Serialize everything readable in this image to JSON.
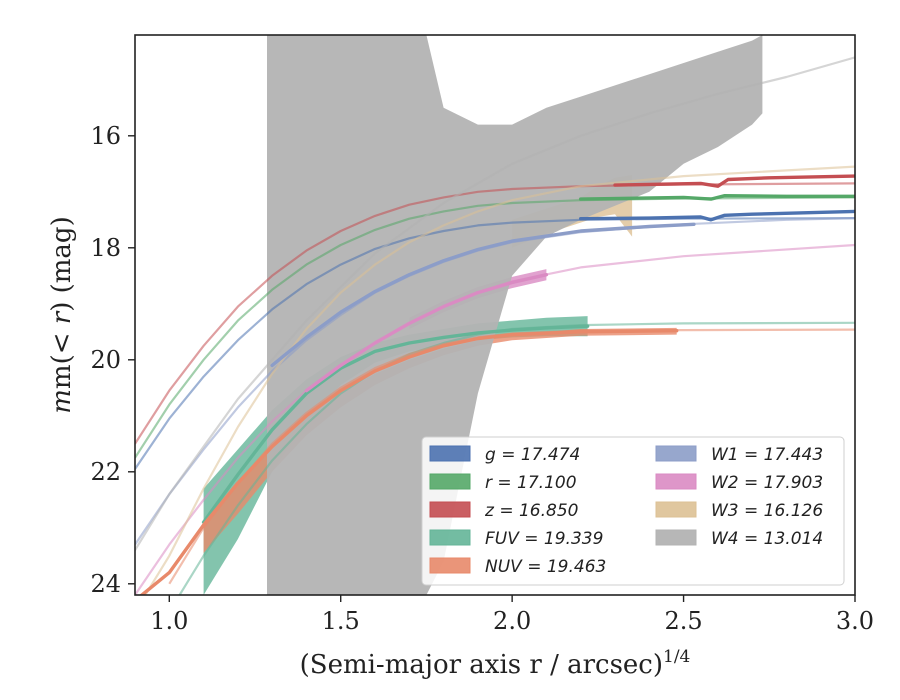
{
  "chart_data": {
    "type": "line",
    "xlabel": "(Semi-major axis r / arcsec)",
    "xlabel_exponent": "1/4",
    "ylabel_prefix": "m(",
    "ylabel_var": "< r",
    "ylabel_suffix": ") (mag)",
    "xlim": [
      0.9,
      3.0
    ],
    "ylim": [
      24.2,
      14.2
    ],
    "y_inverted": true,
    "x_ticks": [
      1.0,
      1.5,
      2.0,
      2.5,
      3.0
    ],
    "x_tick_labels": [
      "1.0",
      "1.5",
      "2.0",
      "2.5",
      "3.0"
    ],
    "y_ticks": [
      16,
      18,
      20,
      22,
      24
    ],
    "y_tick_labels": [
      "16",
      "18",
      "20",
      "22",
      "24"
    ],
    "grid": false,
    "legend_position": "lower-right",
    "series": [
      {
        "key": "g",
        "label": "g = 17.474",
        "color": "#4c72b0",
        "fit": [
          [
            0.9,
            21.95
          ],
          [
            1.0,
            21.05
          ],
          [
            1.1,
            20.3
          ],
          [
            1.2,
            19.65
          ],
          [
            1.3,
            19.1
          ],
          [
            1.4,
            18.65
          ],
          [
            1.5,
            18.3
          ],
          [
            1.6,
            18.02
          ],
          [
            1.7,
            17.83
          ],
          [
            1.8,
            17.7
          ],
          [
            1.9,
            17.6
          ],
          [
            2.0,
            17.55
          ],
          [
            2.2,
            17.5
          ],
          [
            2.5,
            17.48
          ],
          [
            3.0,
            17.47
          ]
        ],
        "data": [
          [
            2.2,
            17.48
          ],
          [
            2.4,
            17.47
          ],
          [
            2.55,
            17.45
          ],
          [
            2.58,
            17.5
          ],
          [
            2.62,
            17.42
          ],
          [
            2.7,
            17.4
          ],
          [
            3.0,
            17.35
          ]
        ],
        "band": null
      },
      {
        "key": "r",
        "label": "r = 17.100",
        "color": "#55a868",
        "fit": [
          [
            0.9,
            21.75
          ],
          [
            1.0,
            20.8
          ],
          [
            1.1,
            20.0
          ],
          [
            1.2,
            19.3
          ],
          [
            1.3,
            18.75
          ],
          [
            1.4,
            18.3
          ],
          [
            1.5,
            17.95
          ],
          [
            1.6,
            17.68
          ],
          [
            1.7,
            17.48
          ],
          [
            1.8,
            17.35
          ],
          [
            1.9,
            17.25
          ],
          [
            2.0,
            17.2
          ],
          [
            2.2,
            17.15
          ],
          [
            2.5,
            17.12
          ],
          [
            3.0,
            17.1
          ]
        ],
        "data": [
          [
            2.2,
            17.13
          ],
          [
            2.5,
            17.1
          ],
          [
            2.58,
            17.13
          ],
          [
            2.62,
            17.07
          ],
          [
            2.8,
            17.08
          ],
          [
            3.0,
            17.08
          ]
        ],
        "band": null
      },
      {
        "key": "z",
        "label": "z = 16.850",
        "color": "#c44e52",
        "fit": [
          [
            0.9,
            21.5
          ],
          [
            1.0,
            20.55
          ],
          [
            1.1,
            19.75
          ],
          [
            1.2,
            19.05
          ],
          [
            1.3,
            18.5
          ],
          [
            1.4,
            18.05
          ],
          [
            1.5,
            17.7
          ],
          [
            1.6,
            17.43
          ],
          [
            1.7,
            17.23
          ],
          [
            1.8,
            17.1
          ],
          [
            1.9,
            17.0
          ],
          [
            2.0,
            16.95
          ],
          [
            2.2,
            16.9
          ],
          [
            2.5,
            16.87
          ],
          [
            3.0,
            16.85
          ]
        ],
        "data": [
          [
            2.3,
            16.88
          ],
          [
            2.55,
            16.85
          ],
          [
            2.6,
            16.9
          ],
          [
            2.63,
            16.78
          ],
          [
            2.75,
            16.75
          ],
          [
            3.0,
            16.72
          ]
        ],
        "band": null
      },
      {
        "key": "FUV",
        "label": "FUV = 19.339",
        "color": "#64b598",
        "fit": [
          [
            1.0,
            24.5
          ],
          [
            1.1,
            23.5
          ],
          [
            1.2,
            22.6
          ],
          [
            1.3,
            21.8
          ],
          [
            1.4,
            21.15
          ],
          [
            1.5,
            20.6
          ],
          [
            1.6,
            20.2
          ],
          [
            1.7,
            19.9
          ],
          [
            1.8,
            19.7
          ],
          [
            1.9,
            19.55
          ],
          [
            2.0,
            19.45
          ],
          [
            2.2,
            19.38
          ],
          [
            2.5,
            19.35
          ],
          [
            3.0,
            19.34
          ]
        ],
        "data": [
          [
            1.1,
            22.9
          ],
          [
            1.2,
            22.05
          ],
          [
            1.3,
            21.25
          ],
          [
            1.4,
            20.6
          ],
          [
            1.5,
            20.15
          ],
          [
            1.6,
            19.85
          ],
          [
            1.7,
            19.7
          ],
          [
            1.8,
            19.6
          ],
          [
            1.9,
            19.52
          ],
          [
            2.0,
            19.47
          ],
          [
            2.1,
            19.43
          ],
          [
            2.22,
            19.4
          ]
        ],
        "band": [
          [
            1.1,
            22.3,
            24.2
          ],
          [
            1.2,
            21.6,
            23.2
          ],
          [
            1.3,
            20.9,
            22.0
          ],
          [
            1.4,
            20.35,
            21.1
          ],
          [
            1.5,
            19.95,
            20.45
          ],
          [
            1.6,
            19.7,
            20.05
          ],
          [
            1.7,
            19.55,
            19.85
          ],
          [
            1.8,
            19.45,
            19.75
          ],
          [
            1.9,
            19.35,
            19.65
          ],
          [
            2.0,
            19.3,
            19.6
          ],
          [
            2.1,
            19.25,
            19.58
          ],
          [
            2.22,
            19.22,
            19.58
          ]
        ]
      },
      {
        "key": "NUV",
        "label": "NUV = 19.463",
        "color": "#e8896a",
        "fit": [
          [
            1.0,
            24.0
          ],
          [
            1.1,
            23.0
          ],
          [
            1.2,
            22.2
          ],
          [
            1.3,
            21.5
          ],
          [
            1.4,
            20.95
          ],
          [
            1.5,
            20.5
          ],
          [
            1.6,
            20.15
          ],
          [
            1.7,
            19.9
          ],
          [
            1.8,
            19.72
          ],
          [
            1.9,
            19.6
          ],
          [
            2.0,
            19.53
          ],
          [
            2.2,
            19.48
          ],
          [
            2.5,
            19.47
          ],
          [
            3.0,
            19.46
          ]
        ],
        "data": [
          [
            0.9,
            24.3
          ],
          [
            1.0,
            23.8
          ],
          [
            1.1,
            22.95
          ],
          [
            1.2,
            22.2
          ],
          [
            1.3,
            21.55
          ],
          [
            1.4,
            21.0
          ],
          [
            1.5,
            20.55
          ],
          [
            1.6,
            20.2
          ],
          [
            1.7,
            19.95
          ],
          [
            1.8,
            19.75
          ],
          [
            1.9,
            19.62
          ],
          [
            2.0,
            19.55
          ],
          [
            2.2,
            19.5
          ],
          [
            2.48,
            19.48
          ]
        ],
        "band": [
          [
            1.1,
            22.9,
            23.45
          ],
          [
            1.2,
            22.2,
            22.75
          ],
          [
            1.3,
            21.55,
            22.0
          ],
          [
            1.4,
            21.0,
            21.35
          ],
          [
            1.5,
            20.6,
            20.85
          ],
          [
            1.6,
            20.25,
            20.45
          ],
          [
            1.7,
            20.0,
            20.15
          ],
          [
            1.8,
            19.8,
            19.92
          ],
          [
            1.9,
            19.65,
            19.75
          ],
          [
            2.0,
            19.55,
            19.65
          ],
          [
            2.2,
            19.45,
            19.57
          ],
          [
            2.48,
            19.43,
            19.55
          ]
        ]
      },
      {
        "key": "W1",
        "label": "W1 = 17.443",
        "color": "#8c9dc8",
        "fit": [
          [
            0.9,
            23.3
          ],
          [
            1.0,
            22.4
          ],
          [
            1.1,
            21.6
          ],
          [
            1.2,
            20.85
          ],
          [
            1.3,
            20.2
          ],
          [
            1.4,
            19.65
          ],
          [
            1.5,
            19.2
          ],
          [
            1.6,
            18.8
          ],
          [
            1.7,
            18.5
          ],
          [
            1.8,
            18.25
          ],
          [
            1.9,
            18.05
          ],
          [
            2.0,
            17.9
          ],
          [
            2.2,
            17.72
          ],
          [
            2.5,
            17.58
          ],
          [
            2.8,
            17.5
          ],
          [
            3.0,
            17.47
          ]
        ],
        "data": [
          [
            1.3,
            20.1
          ],
          [
            1.4,
            19.6
          ],
          [
            1.5,
            19.15
          ],
          [
            1.6,
            18.78
          ],
          [
            1.7,
            18.48
          ],
          [
            1.8,
            18.23
          ],
          [
            1.9,
            18.03
          ],
          [
            2.0,
            17.88
          ],
          [
            2.2,
            17.7
          ],
          [
            2.4,
            17.62
          ],
          [
            2.53,
            17.58
          ]
        ],
        "band": null
      },
      {
        "key": "W2",
        "label": "W2 = 17.903",
        "color": "#da8bc3",
        "fit": [
          [
            0.9,
            24.2
          ],
          [
            1.0,
            23.3
          ],
          [
            1.1,
            22.5
          ],
          [
            1.2,
            21.75
          ],
          [
            1.3,
            21.1
          ],
          [
            1.4,
            20.55
          ],
          [
            1.5,
            20.1
          ],
          [
            1.6,
            19.7
          ],
          [
            1.7,
            19.35
          ],
          [
            1.8,
            19.05
          ],
          [
            1.9,
            18.8
          ],
          [
            2.0,
            18.6
          ],
          [
            2.2,
            18.35
          ],
          [
            2.5,
            18.15
          ],
          [
            3.0,
            17.95
          ]
        ],
        "data": [
          [
            1.4,
            20.55
          ],
          [
            1.5,
            20.1
          ],
          [
            1.6,
            19.7
          ],
          [
            1.7,
            19.35
          ],
          [
            1.8,
            19.05
          ],
          [
            1.9,
            18.8
          ],
          [
            2.0,
            18.62
          ],
          [
            2.1,
            18.48
          ]
        ],
        "band": [
          [
            1.7,
            19.25,
            19.45
          ],
          [
            1.8,
            18.95,
            19.15
          ],
          [
            1.9,
            18.7,
            18.9
          ],
          [
            2.0,
            18.52,
            18.72
          ],
          [
            2.1,
            18.38,
            18.58
          ]
        ]
      },
      {
        "key": "W3",
        "label": "W3 = 16.126",
        "color": "#ddc195",
        "fit": [
          [
            0.9,
            24.5
          ],
          [
            1.0,
            23.5
          ],
          [
            1.1,
            22.3
          ],
          [
            1.2,
            21.2
          ],
          [
            1.3,
            20.25
          ],
          [
            1.4,
            19.45
          ],
          [
            1.5,
            18.8
          ],
          [
            1.6,
            18.3
          ],
          [
            1.7,
            17.9
          ],
          [
            1.8,
            17.6
          ],
          [
            1.9,
            17.35
          ],
          [
            2.0,
            17.15
          ],
          [
            2.2,
            16.9
          ],
          [
            2.5,
            16.72
          ],
          [
            3.0,
            16.55
          ]
        ],
        "data": [],
        "band": [
          [
            2.0,
            17.5,
            18.0
          ],
          [
            2.1,
            17.3,
            17.75
          ],
          [
            2.2,
            17.1,
            17.55
          ],
          [
            2.25,
            16.9,
            17.45
          ],
          [
            2.3,
            16.75,
            17.4
          ],
          [
            2.35,
            16.7,
            17.8
          ]
        ]
      },
      {
        "key": "W4",
        "label": "W4 = 13.014",
        "color": "#b3b3b3",
        "fit": [
          [
            0.9,
            23.4
          ],
          [
            1.0,
            22.4
          ],
          [
            1.2,
            20.7
          ],
          [
            1.4,
            19.3
          ],
          [
            1.6,
            18.1
          ],
          [
            1.8,
            17.2
          ],
          [
            2.0,
            16.5
          ],
          [
            2.2,
            16.0
          ],
          [
            2.4,
            15.6
          ],
          [
            2.6,
            15.25
          ],
          [
            2.8,
            14.95
          ],
          [
            3.0,
            14.6
          ]
        ],
        "data": [],
        "band": [
          [
            1.285,
            14.2,
            24.2
          ],
          [
            1.4,
            14.2,
            24.2
          ],
          [
            1.6,
            14.2,
            24.2
          ],
          [
            1.75,
            14.2,
            24.2
          ],
          [
            1.8,
            15.5,
            23.6
          ],
          [
            1.9,
            15.8,
            20.6
          ],
          [
            2.0,
            15.8,
            18.5
          ],
          [
            2.1,
            15.5,
            17.8
          ],
          [
            2.2,
            15.3,
            17.5
          ],
          [
            2.3,
            15.1,
            17.25
          ],
          [
            2.4,
            14.9,
            17.0
          ],
          [
            2.5,
            14.7,
            16.5
          ],
          [
            2.6,
            14.5,
            16.2
          ],
          [
            2.7,
            14.3,
            15.8
          ],
          [
            2.73,
            14.2,
            15.6
          ]
        ]
      }
    ]
  }
}
